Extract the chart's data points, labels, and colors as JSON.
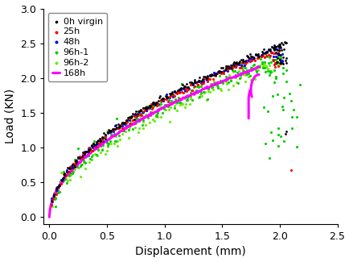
{
  "title": "",
  "xlabel": "Displacement (mm)",
  "ylabel": "Load (KN)",
  "xlim": [
    -0.05,
    2.5
  ],
  "ylim": [
    -0.1,
    3.0
  ],
  "xticks": [
    0.0,
    0.5,
    1.0,
    1.5,
    2.0,
    2.5
  ],
  "yticks": [
    0.0,
    0.5,
    1.0,
    1.5,
    2.0,
    2.5,
    3.0
  ],
  "colors": {
    "0h": "#000000",
    "25h": "#ff0000",
    "48h": "#0000ff",
    "96h1": "#00cc00",
    "96h2": "#66ee00",
    "168h": "#ff00ff"
  },
  "legend_loc": "upper left",
  "figsize": [
    4.35,
    3.25
  ],
  "dpi": 100
}
